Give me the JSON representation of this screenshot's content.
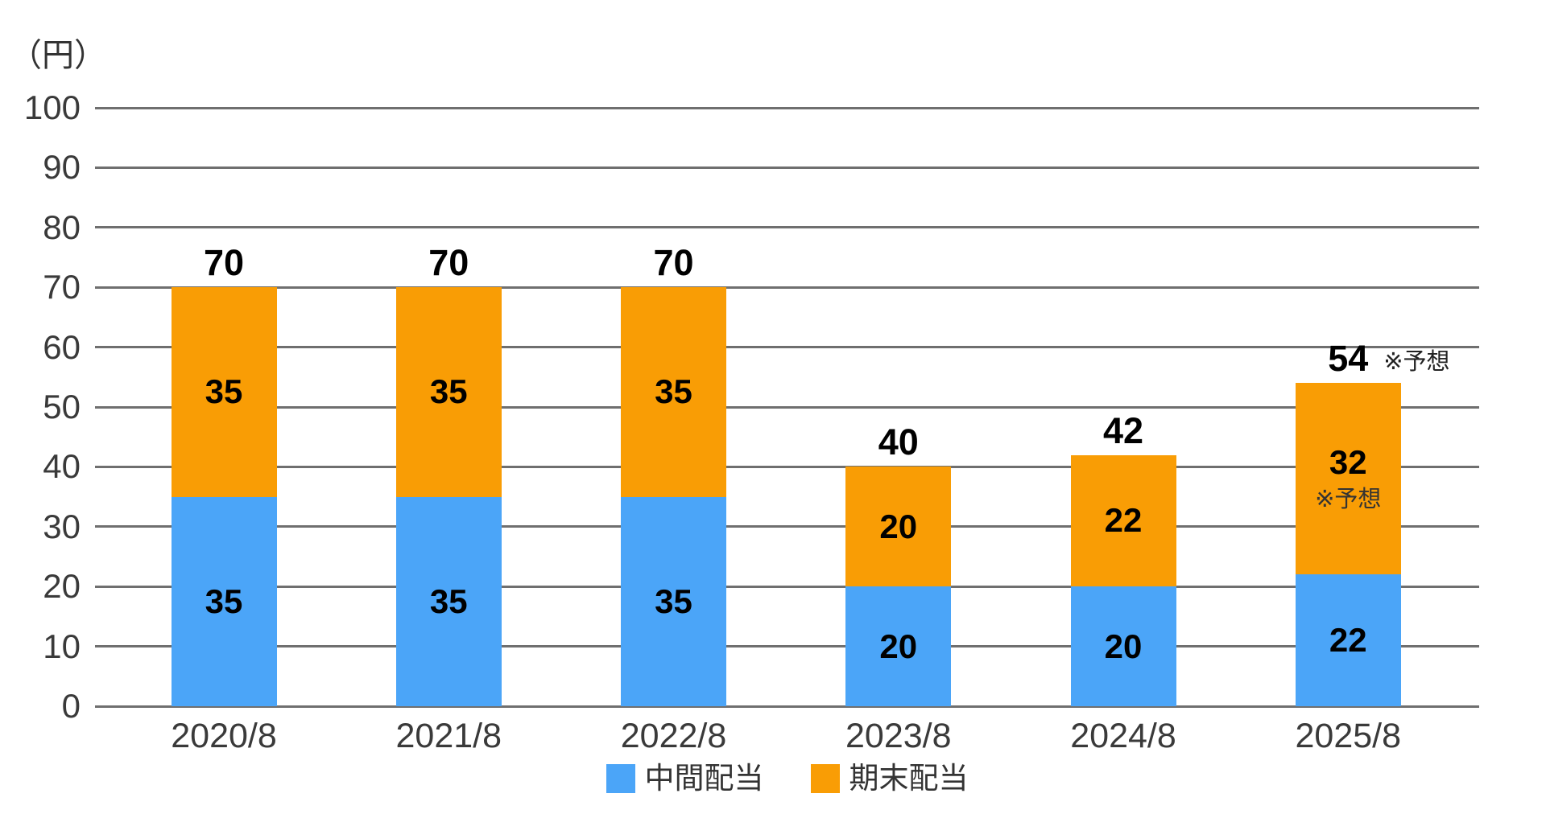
{
  "y_axis": {
    "unit_label": "（円）"
  },
  "annotations": {
    "forecast": "※予想"
  },
  "colors": {
    "interim_blue": "#4BA5F8",
    "yearend_orange": "#F99D05",
    "gridline": "#6F6F6F",
    "axis_text": "#3A3A3A",
    "value_text": "#000000",
    "background": "#FFFFFF"
  },
  "legend": {
    "items": [
      {
        "label": "中間配当",
        "color": "#4BA5F8"
      },
      {
        "label": "期末配当",
        "color": "#F99D05"
      }
    ]
  },
  "chart_data": {
    "type": "bar",
    "stacked": true,
    "title": "",
    "ylabel": "（円）",
    "xlabel": "",
    "categories": [
      "2020/8",
      "2021/8",
      "2022/8",
      "2023/8",
      "2024/8",
      "2025/8"
    ],
    "series": [
      {
        "name": "中間配当",
        "color": "#4BA5F8",
        "values": [
          35,
          35,
          35,
          20,
          20,
          22
        ]
      },
      {
        "name": "期末配当",
        "color": "#F99D05",
        "values": [
          35,
          35,
          35,
          20,
          22,
          32
        ]
      }
    ],
    "totals": [
      70,
      70,
      70,
      40,
      42,
      54
    ],
    "forecast_label": "※予想",
    "forecast_category_index": 5,
    "forecast_marked_on": [
      "total",
      "期末配当"
    ],
    "ylim": [
      0,
      100
    ],
    "ytick_step": 10,
    "grid": true,
    "legend_position": "bottom-center"
  }
}
